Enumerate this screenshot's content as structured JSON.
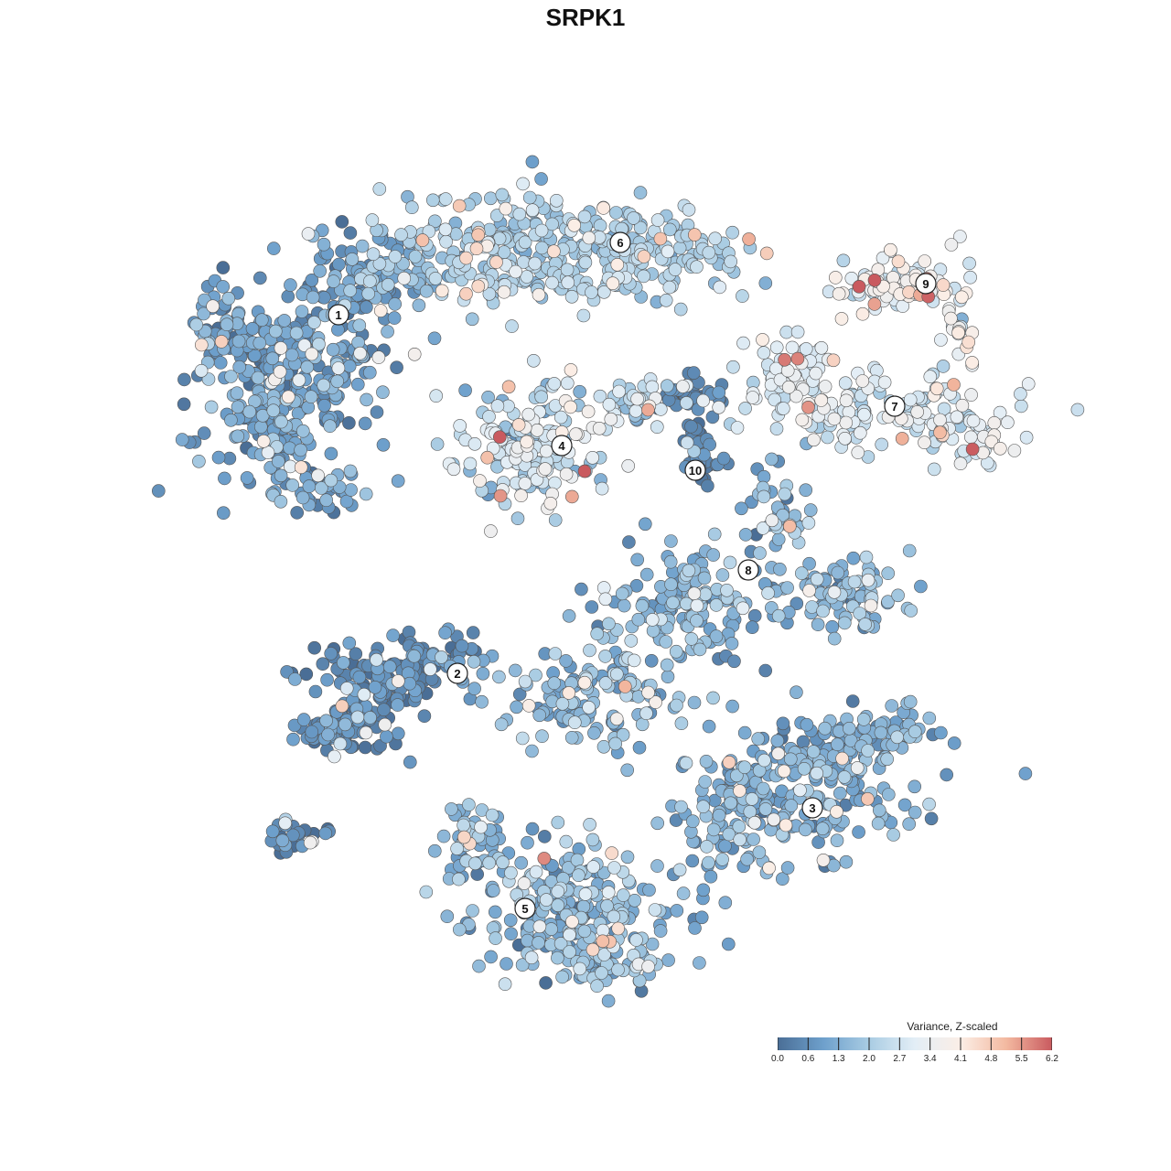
{
  "chart_data": {
    "type": "scatter",
    "title": "SRPK1",
    "legend": {
      "title": "Variance, Z-scaled",
      "placement": "bottom-right",
      "ticks": [
        "0.0",
        "0.6",
        "1.3",
        "2.0",
        "2.7",
        "3.4",
        "4.1",
        "4.8",
        "5.5",
        "6.2"
      ],
      "range": [
        0.0,
        6.2
      ],
      "colors": [
        "#4a6e96",
        "#6ea0cc",
        "#a9cce3",
        "#e3eef6",
        "#fbeee6",
        "#f3b9a0",
        "#c95a5f"
      ]
    },
    "clusters": [
      {
        "label": "1",
        "level": 1.0,
        "spread": 0.9
      },
      {
        "label": "2",
        "level": 0.6,
        "spread": 0.8
      },
      {
        "label": "3",
        "level": 1.4,
        "spread": 0.9
      },
      {
        "label": "4",
        "level": 2.6,
        "spread": 1.4
      },
      {
        "label": "5",
        "level": 1.6,
        "spread": 1.1
      },
      {
        "label": "6",
        "level": 2.1,
        "spread": 0.7
      },
      {
        "label": "7",
        "level": 2.9,
        "spread": 0.8
      },
      {
        "label": "8",
        "level": 1.5,
        "spread": 1.0
      },
      {
        "label": "9",
        "level": 3.3,
        "spread": 1.0
      },
      {
        "label": "10",
        "level": 0.4,
        "spread": 0.5
      }
    ]
  }
}
